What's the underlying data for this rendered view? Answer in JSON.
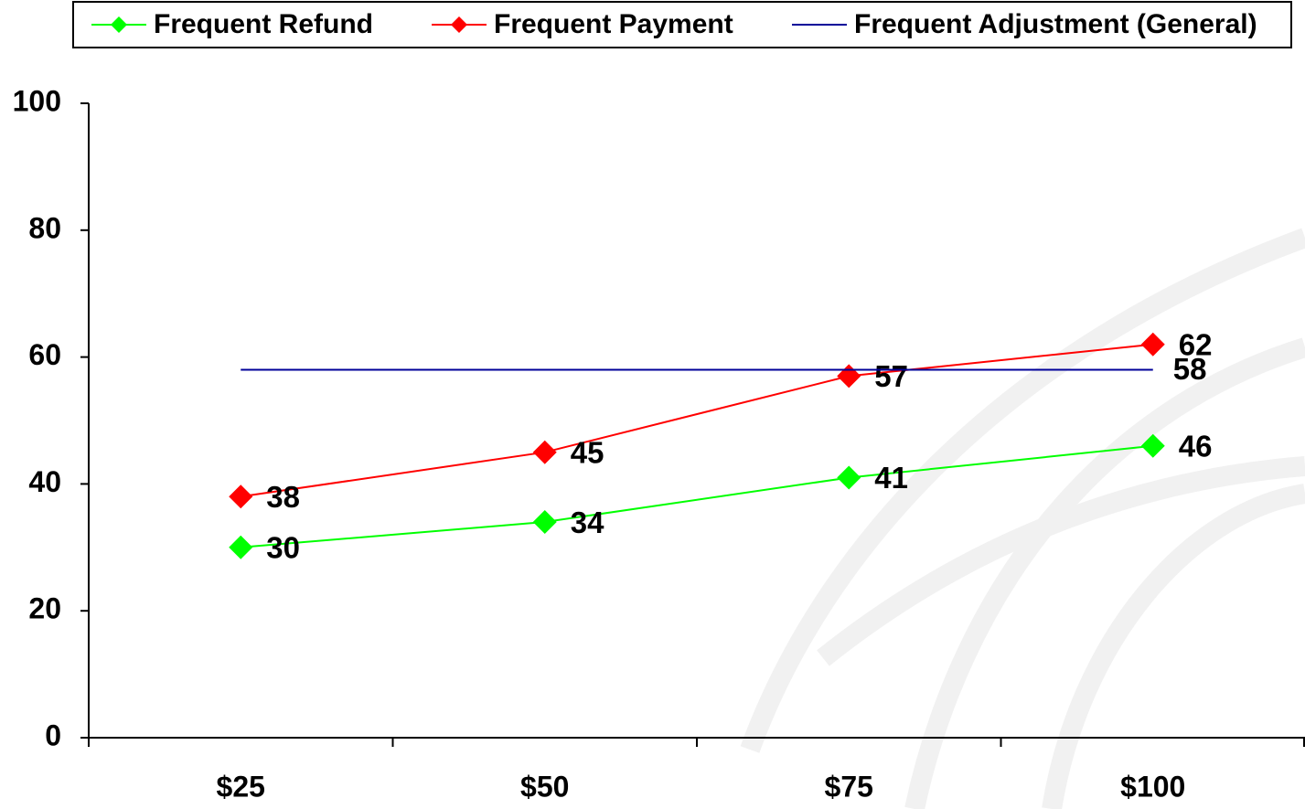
{
  "chart_data": {
    "type": "line",
    "categories": [
      "$25",
      "$50",
      "$75",
      "$100"
    ],
    "series": [
      {
        "name": "Frequent Refund",
        "color": "#00ff00",
        "marker": "diamond",
        "values": [
          30,
          34,
          41,
          46
        ]
      },
      {
        "name": "Frequent Payment",
        "color": "#ff0000",
        "marker": "diamond",
        "values": [
          38,
          45,
          57,
          62
        ]
      },
      {
        "name": "Frequent Adjustment (General)",
        "color": "#000099",
        "marker": null,
        "values": [
          58,
          58,
          58,
          58
        ],
        "value_labels": [
          null,
          null,
          null,
          "58"
        ]
      }
    ],
    "ylim": [
      0,
      100
    ],
    "yticks": [
      0,
      20,
      40,
      60,
      80,
      100
    ],
    "grid": false,
    "legend": "top"
  }
}
